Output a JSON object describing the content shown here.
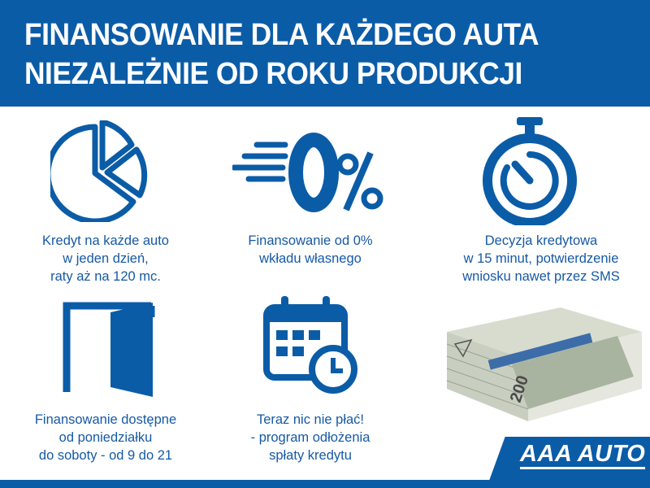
{
  "header": {
    "line1": "FINANSOWANIE DLA KAŻDEGO AUTA",
    "line2": "NIEZALEŻNIE OD ROKU PRODUKCJI"
  },
  "features": [
    {
      "icon": "pie-chart-icon",
      "lines": [
        "Kredyt na każde auto",
        "w jeden dzień,",
        "raty aż na 120 mc."
      ]
    },
    {
      "icon": "zero-percent-icon",
      "lines": [
        "Finansowanie od 0%",
        "wkładu własnego"
      ]
    },
    {
      "icon": "stopwatch-icon",
      "lines": [
        "Decyzja kredytowa",
        "w 15 minut, potwierdzenie",
        "wniosku nawet przez SMS"
      ]
    },
    {
      "icon": "open-door-icon",
      "lines": [
        "Finansowanie dostępne",
        "od poniedziałku",
        "do soboty - od 9 do 21"
      ]
    },
    {
      "icon": "calendar-clock-icon",
      "lines": [
        "Teraz nic nie płać!",
        "- program odłożenia",
        "spłaty kredytu"
      ]
    }
  ],
  "money_image": {
    "icon": "banknotes-icon",
    "denomination": "200"
  },
  "logo": {
    "text": "AAA AUTO"
  },
  "colors": {
    "brand": "#0b5ca7",
    "text": "#1659a5"
  }
}
